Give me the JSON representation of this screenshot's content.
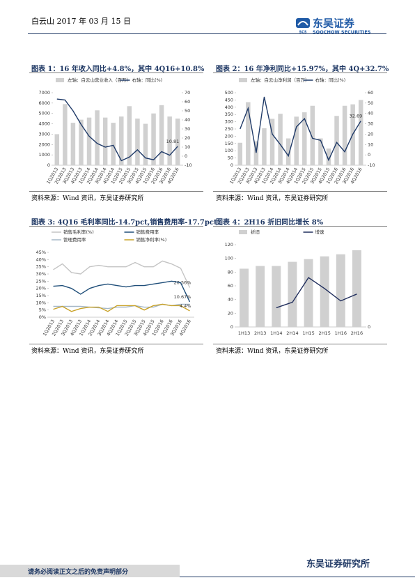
{
  "header": {
    "date": "白云山 2017 年 03 月 15 日",
    "brand": "东吴证券",
    "brand_en": "SOOCHOW SECURITIES",
    "logo": "SCS"
  },
  "footer": {
    "disclaimer": "请务必阅读正文之后的免责声明部分",
    "institute": "东吴证券研究所"
  },
  "chart_data": [
    {
      "type": "combo",
      "title": "图表 1：16 年收入同比+4.8%，其中 4Q16+10.8%",
      "source": "资料来源：Wind 资讯，东吴证券研究所",
      "categories": [
        "1Q2013",
        "2Q2013",
        "3Q2013",
        "4Q2013",
        "1Q2014",
        "2Q2014",
        "3Q2014",
        "4Q2014",
        "1Q2015",
        "2Q2015",
        "3Q2015",
        "4Q2015",
        "1Q2016",
        "2Q2016",
        "3Q2016",
        "4Q2016"
      ],
      "series": [
        {
          "name": "左轴：白云山营业收入（百万）",
          "type": "bar",
          "color": "#d0d0d0",
          "values": [
            3000,
            5900,
            4100,
            4400,
            4600,
            5300,
            4600,
            4100,
            4700,
            5700,
            4500,
            4000,
            5000,
            5800,
            4700,
            4500
          ]
        },
        {
          "name": "右轴：同比(%)",
          "type": "line",
          "axis": "y2",
          "color": "#1f3a68",
          "values": [
            63,
            62,
            50,
            35,
            22,
            14,
            10,
            12,
            -5,
            -1,
            7,
            -2,
            -4,
            5,
            1,
            10.81
          ],
          "value_labels": [
            null,
            null,
            null,
            null,
            null,
            null,
            null,
            null,
            null,
            null,
            null,
            null,
            null,
            null,
            null,
            "10.81"
          ]
        }
      ],
      "ylim": [
        0,
        7000
      ],
      "yticks": [
        0,
        1000,
        2000,
        3000,
        4000,
        5000,
        6000,
        7000
      ],
      "y2lim": [
        -10,
        70
      ],
      "y2ticks": [
        -10,
        0,
        10,
        20,
        30,
        40,
        50,
        60,
        70
      ]
    },
    {
      "type": "combo",
      "title": "图表 2：16 年净利同比+15.97%，其中 4Q+32.7%",
      "source": "资料来源：Wind 资讯，东吴证券研究所",
      "categories": [
        "1Q2013",
        "2Q2013",
        "3Q2013",
        "4Q2013",
        "1Q2014",
        "2Q2014",
        "3Q2014",
        "4Q2014",
        "1Q2015",
        "2Q2015",
        "3Q2015",
        "4Q2015",
        "1Q2016",
        "2Q2016",
        "3Q2016",
        "4Q2016"
      ],
      "series": [
        {
          "name": "左轴：白云山净利润（百万）",
          "type": "bar",
          "color": "#d0d0d0",
          "values": [
            155,
            435,
            165,
            255,
            320,
            355,
            185,
            335,
            365,
            410,
            185,
            115,
            340,
            410,
            420,
            450
          ]
        },
        {
          "name": "右轴：同比(%)",
          "type": "line",
          "axis": "y2",
          "color": "#1f3a68",
          "values": [
            25,
            45,
            2,
            56,
            20,
            10,
            -1,
            27,
            35,
            16,
            14,
            -5,
            12,
            3,
            20,
            32.69
          ],
          "value_labels": [
            null,
            null,
            null,
            null,
            null,
            null,
            null,
            null,
            null,
            null,
            null,
            null,
            null,
            null,
            null,
            "32.69"
          ]
        }
      ],
      "ylim": [
        0,
        500
      ],
      "yticks": [
        0,
        50,
        100,
        150,
        200,
        250,
        300,
        350,
        400,
        450,
        500
      ],
      "y2lim": [
        -10,
        60
      ],
      "y2ticks": [
        -10,
        0,
        10,
        20,
        30,
        40,
        50,
        60
      ]
    },
    {
      "type": "line",
      "title": "图表 3: 4Q16 毛利率同比-14.7pct,销售费用率-17.7pct",
      "source": "资料来源：Wind 资讯，东吴证券研究所",
      "categories": [
        "1Q2013",
        "2Q2013",
        "3Q2013",
        "4Q2013",
        "1Q2014",
        "2Q2014",
        "3Q2014",
        "4Q2014",
        "1Q2015",
        "2Q2015",
        "3Q2015",
        "4Q2015",
        "1Q2016",
        "2Q2016",
        "3Q2016",
        "4Q2016"
      ],
      "series": [
        {
          "name": "销售毛利率(%)",
          "type": "line",
          "color": "#c4c4c4",
          "values": [
            33,
            37,
            31,
            30,
            35,
            36,
            35,
            35,
            35,
            38,
            35,
            35,
            39,
            37,
            34,
            20.56
          ],
          "value_labels": [
            null,
            null,
            null,
            null,
            null,
            null,
            null,
            null,
            null,
            null,
            null,
            null,
            null,
            null,
            null,
            "20.56%"
          ]
        },
        {
          "name": "销售费用率",
          "type": "line",
          "color": "#1f4e79",
          "values": [
            21.5,
            22,
            20,
            16,
            20,
            22,
            23,
            22,
            21,
            22,
            22,
            23,
            24,
            25,
            24,
            10.67
          ],
          "value_labels": [
            null,
            null,
            null,
            null,
            null,
            null,
            null,
            null,
            null,
            null,
            null,
            null,
            null,
            null,
            null,
            "10.67%"
          ]
        },
        {
          "name": "管理费用率",
          "type": "line",
          "color": "#a6b8c8",
          "values": [
            7.5,
            7.5,
            7.5,
            7.5,
            7,
            6.5,
            6,
            7,
            7,
            8,
            7,
            7,
            9,
            8,
            9,
            9
          ]
        },
        {
          "name": "销售净利率(%)",
          "type": "line",
          "color": "#c9a227",
          "values": [
            5.5,
            7.5,
            4,
            6,
            7,
            7,
            4,
            8,
            8,
            8,
            5,
            8,
            9,
            8,
            8,
            4.4
          ],
          "value_labels": [
            null,
            null,
            null,
            null,
            null,
            null,
            null,
            null,
            null,
            null,
            null,
            null,
            null,
            null,
            null,
            "4.4%"
          ]
        }
      ],
      "ylim": [
        0,
        45
      ],
      "yticks": [
        {
          "value": 0,
          "label": "0%"
        },
        {
          "value": 5,
          "label": "5%"
        },
        {
          "value": 10,
          "label": "10%"
        },
        {
          "value": 15,
          "label": "15%"
        },
        {
          "value": 20,
          "label": "20%"
        },
        {
          "value": 25,
          "label": "25%"
        },
        {
          "value": 30,
          "label": "30%"
        },
        {
          "value": 35,
          "label": "35%"
        },
        {
          "value": 40,
          "label": "40%"
        },
        {
          "value": 45,
          "label": "45%"
        }
      ]
    },
    {
      "type": "combo",
      "title": "图表 4：2H16 折旧同比增长 8%",
      "source": "资料来源：Wind 资讯，东吴证券研究所",
      "categories": [
        "1H13",
        "2H13",
        "1H14",
        "2H14",
        "1H15",
        "2H15",
        "1H16",
        "2H16"
      ],
      "series": [
        {
          "name": "折旧",
          "type": "bar",
          "color": "#d0d0d0",
          "values": [
            85,
            89,
            89,
            95,
            99,
            103,
            106,
            112
          ]
        },
        {
          "name": "增速",
          "type": "line",
          "axis": "y2",
          "color": "#1f2d5c",
          "values": [
            null,
            null,
            28,
            36,
            72,
            56,
            38,
            48
          ]
        }
      ],
      "ylim": [
        0,
        120
      ],
      "yticks": [
        0,
        20,
        40,
        60,
        80,
        100,
        120
      ],
      "y2lim": [
        0,
        120
      ],
      "y2ticks": [
        0
      ]
    }
  ]
}
